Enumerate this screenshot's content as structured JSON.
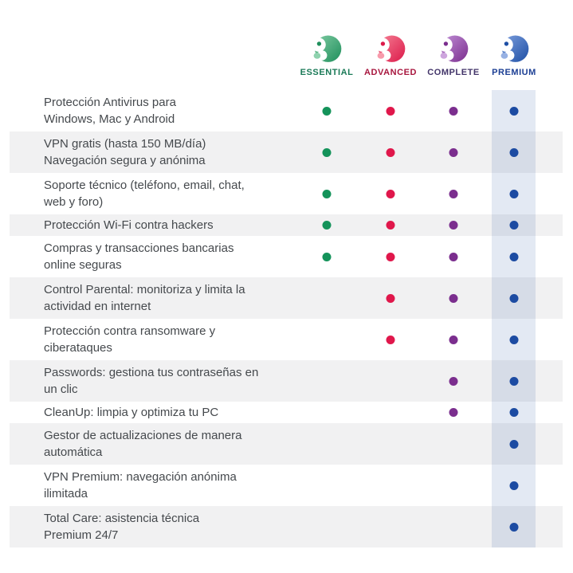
{
  "plans": [
    {
      "name": "ESSENTIAL",
      "label_color": "#1a7a57",
      "dot_color": "#14935a",
      "icon_light": "#7fcba2",
      "icon_mid": "#8fd2ae",
      "icon_dark": "#1f8f5c"
    },
    {
      "name": "ADVANCED",
      "label_color": "#a8173f",
      "dot_color": "#e0174b",
      "icon_light": "#f57f94",
      "icon_mid": "#f79aab",
      "icon_dark": "#dc1a4a"
    },
    {
      "name": "COMPLETE",
      "label_color": "#43356a",
      "dot_color": "#7b2e8e",
      "icon_light": "#c08fd6",
      "icon_mid": "#cda5dd",
      "icon_dark": "#7b2e8e"
    },
    {
      "name": "PREMIUM",
      "label_color": "#1c3f94",
      "dot_color": "#1c4ba2",
      "icon_light": "#7d9fdd",
      "icon_mid": "#97b1e3",
      "icon_dark": "#1e4fa5"
    }
  ],
  "premium_band_color": "rgba(37, 86, 166, 0.13)",
  "row_alt_color": "#f1f1f2",
  "rows": [
    {
      "text": "Protección Antivirus para\nWindows, Mac y Android",
      "lines": 2,
      "available": [
        true,
        true,
        true,
        true
      ]
    },
    {
      "text": "VPN gratis (hasta 150 MB/día)\nNavegación segura y anónima",
      "lines": 2,
      "available": [
        true,
        true,
        true,
        true
      ]
    },
    {
      "text": "Soporte técnico (teléfono, email, chat,\nweb y foro)",
      "lines": 2,
      "available": [
        true,
        true,
        true,
        true
      ]
    },
    {
      "text": "Protección Wi-Fi contra hackers",
      "lines": 1,
      "available": [
        true,
        true,
        true,
        true
      ]
    },
    {
      "text": "Compras y transacciones bancarias\nonline seguras",
      "lines": 2,
      "available": [
        true,
        true,
        true,
        true
      ]
    },
    {
      "text": "Control Parental: monitoriza y limita la\nactividad en internet",
      "lines": 2,
      "available": [
        false,
        true,
        true,
        true
      ]
    },
    {
      "text": "Protección contra ransomware y\nciberataques",
      "lines": 2,
      "available": [
        false,
        true,
        true,
        true
      ]
    },
    {
      "text": "Passwords: gestiona tus contraseñas en\nun clic",
      "lines": 2,
      "available": [
        false,
        false,
        true,
        true
      ]
    },
    {
      "text": "CleanUp: limpia y optimiza tu PC",
      "lines": 1,
      "available": [
        false,
        false,
        true,
        true
      ]
    },
    {
      "text": "Gestor de actualizaciones de manera\nautomática",
      "lines": 2,
      "available": [
        false,
        false,
        false,
        true
      ]
    },
    {
      "text": "VPN Premium: navegación anónima\nilimitada",
      "lines": 2,
      "available": [
        false,
        false,
        false,
        true
      ]
    },
    {
      "text": "Total Care: asistencia técnica\nPremium 24/7",
      "lines": 2,
      "available": [
        false,
        false,
        false,
        true
      ]
    }
  ]
}
